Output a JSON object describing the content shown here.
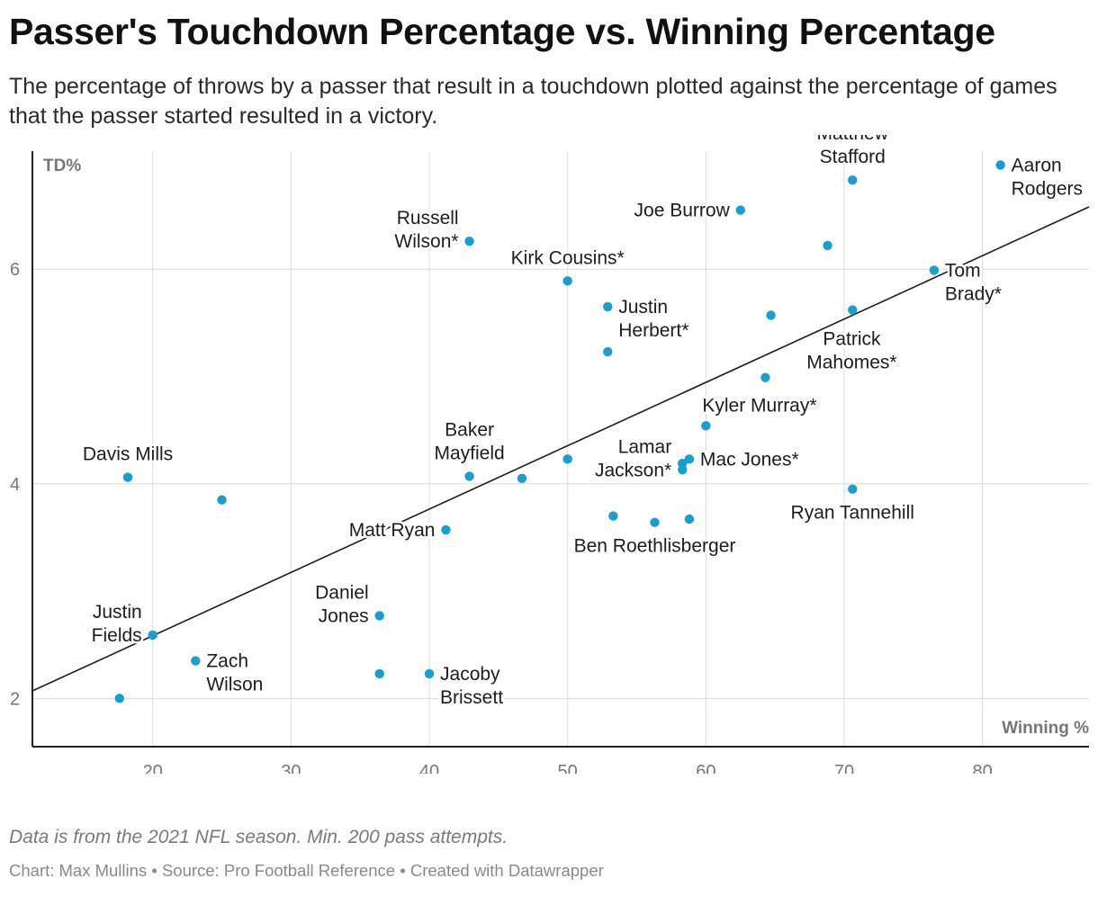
{
  "title": "Passer's Touchdown Percentage vs. Winning Percentage",
  "subtitle": "The percentage of throws by a passer that result in a touchdown plotted against the percentage of games that the passer started resulted in a victory.",
  "notes": "Data is from the 2021 NFL season. Min. 200 pass attempts.",
  "footer": {
    "credit": "Chart: Max Mullins",
    "source": "Source: Pro Football Reference",
    "created": "Created with Datawrapper"
  },
  "chart_data": {
    "type": "scatter",
    "xlabel": "Winning %",
    "ylabel": "TD%",
    "xlim": [
      11.3,
      87.7
    ],
    "ylim": [
      1.55,
      7.1
    ],
    "x_ticks": [
      20,
      30,
      40,
      50,
      60,
      70,
      80
    ],
    "y_ticks": [
      2,
      4,
      6
    ],
    "grid": true,
    "colors": {
      "point": "#1a9ed0",
      "trend": "#1d1d1d",
      "grid": "#dcdcdc",
      "axis": "#222222"
    },
    "trend_line": {
      "x": [
        11.3,
        87.7
      ],
      "y": [
        2.07,
        6.58
      ]
    },
    "points": [
      {
        "label": "Aaron Rodgers",
        "x": 81.3,
        "y": 6.97
      },
      {
        "label": "Matthew Stafford",
        "x": 70.6,
        "y": 6.83
      },
      {
        "label": "Joe Burrow",
        "x": 62.5,
        "y": 6.55
      },
      {
        "label": "",
        "x": 68.8,
        "y": 6.22
      },
      {
        "label": "Russell Wilson*",
        "x": 42.9,
        "y": 6.26
      },
      {
        "label": "Tom Brady*",
        "x": 76.5,
        "y": 5.99
      },
      {
        "label": "Kirk Cousins*",
        "x": 50.0,
        "y": 5.89
      },
      {
        "label": "Justin Herbert*",
        "x": 52.9,
        "y": 5.65
      },
      {
        "label": "",
        "x": 70.6,
        "y": 5.62
      },
      {
        "label": "",
        "x": 64.7,
        "y": 5.57
      },
      {
        "label": "",
        "x": 52.9,
        "y": 5.23
      },
      {
        "label": "Patrick Mahomes*",
        "x": 64.3,
        "y": 4.99
      },
      {
        "label": "Kyler Murray*",
        "x": 60.0,
        "y": 4.54
      },
      {
        "label": "",
        "x": 50.0,
        "y": 4.23
      },
      {
        "label": "Mac Jones*",
        "x": 58.8,
        "y": 4.23
      },
      {
        "label": "",
        "x": 58.3,
        "y": 4.19
      },
      {
        "label": "Lamar Jackson*",
        "x": 58.3,
        "y": 4.13
      },
      {
        "label": "Davis Mills",
        "x": 18.2,
        "y": 4.06
      },
      {
        "label": "Baker Mayfield",
        "x": 42.9,
        "y": 4.07
      },
      {
        "label": "",
        "x": 46.7,
        "y": 4.05
      },
      {
        "label": "Ryan Tannehill",
        "x": 70.6,
        "y": 3.95
      },
      {
        "label": "",
        "x": 25.0,
        "y": 3.85
      },
      {
        "label": "",
        "x": 53.3,
        "y": 3.7
      },
      {
        "label": "Ben Roethlisberger",
        "x": 56.3,
        "y": 3.64
      },
      {
        "label": "",
        "x": 58.8,
        "y": 3.67
      },
      {
        "label": "Matt Ryan",
        "x": 41.2,
        "y": 3.57
      },
      {
        "label": "Daniel Jones",
        "x": 36.4,
        "y": 2.77
      },
      {
        "label": "Justin Fields",
        "x": 20.0,
        "y": 2.59
      },
      {
        "label": "Zach Wilson",
        "x": 23.1,
        "y": 2.35
      },
      {
        "label": "",
        "x": 36.4,
        "y": 2.23
      },
      {
        "label": "Jacoby Brissett",
        "x": 40.0,
        "y": 2.23
      },
      {
        "label": "",
        "x": 17.6,
        "y": 2.0
      }
    ],
    "annotations": [
      {
        "lines": [
          "Aaron",
          "Rodgers"
        ],
        "x": 81.3,
        "y": 6.97,
        "pos": "right"
      },
      {
        "lines": [
          "Matthew",
          "Stafford"
        ],
        "x": 70.6,
        "y": 6.83,
        "pos": "above"
      },
      {
        "lines": [
          "Joe Burrow"
        ],
        "x": 62.5,
        "y": 6.55,
        "pos": "left"
      },
      {
        "lines": [
          "Russell",
          "Wilson*"
        ],
        "x": 42.9,
        "y": 6.26,
        "pos": "left"
      },
      {
        "lines": [
          "Tom",
          "Brady*"
        ],
        "x": 76.5,
        "y": 5.99,
        "pos": "right"
      },
      {
        "lines": [
          "Kirk Cousins*"
        ],
        "x": 50.0,
        "y": 5.89,
        "pos": "above"
      },
      {
        "lines": [
          "Justin",
          "Herbert*"
        ],
        "x": 52.9,
        "y": 5.65,
        "pos": "right"
      },
      {
        "lines": [
          "Patrick",
          "Mahomes*"
        ],
        "x": 64.3,
        "y": 4.99,
        "pos": "right-up"
      },
      {
        "lines": [
          "Kyler Murray*"
        ],
        "x": 60.0,
        "y": 4.54,
        "pos": "above-right"
      },
      {
        "lines": [
          "Mac Jones*"
        ],
        "x": 58.8,
        "y": 4.23,
        "pos": "right"
      },
      {
        "lines": [
          "Lamar",
          "Jackson*"
        ],
        "x": 58.3,
        "y": 4.13,
        "pos": "left"
      },
      {
        "lines": [
          "Davis Mills"
        ],
        "x": 18.2,
        "y": 4.06,
        "pos": "above"
      },
      {
        "lines": [
          "Baker",
          "Mayfield"
        ],
        "x": 42.9,
        "y": 4.07,
        "pos": "above"
      },
      {
        "lines": [
          "Ryan Tannehill"
        ],
        "x": 70.6,
        "y": 3.95,
        "pos": "below"
      },
      {
        "lines": [
          "Ben Roethlisberger"
        ],
        "x": 56.3,
        "y": 3.64,
        "pos": "below"
      },
      {
        "lines": [
          "Matt Ryan"
        ],
        "x": 41.2,
        "y": 3.57,
        "pos": "left"
      },
      {
        "lines": [
          "Daniel",
          "Jones"
        ],
        "x": 36.4,
        "y": 2.77,
        "pos": "left"
      },
      {
        "lines": [
          "Justin",
          "Fields"
        ],
        "x": 20.0,
        "y": 2.59,
        "pos": "left"
      },
      {
        "lines": [
          "Zach",
          "Wilson"
        ],
        "x": 23.1,
        "y": 2.35,
        "pos": "right"
      },
      {
        "lines": [
          "Jacoby",
          "Brissett"
        ],
        "x": 40.0,
        "y": 2.23,
        "pos": "right"
      }
    ]
  }
}
